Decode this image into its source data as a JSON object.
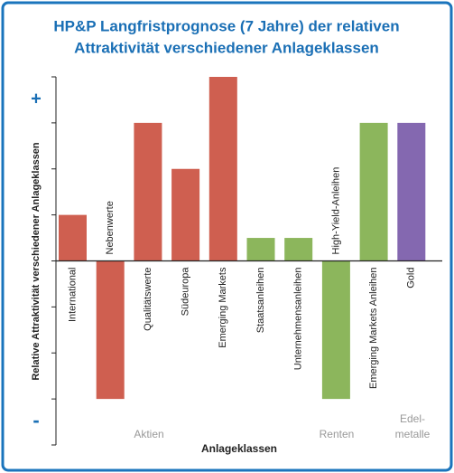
{
  "chart_data": {
    "type": "bar",
    "title": [
      "HP&P Langfristprognose (7 Jahre) der relativen",
      "Attraktivität verschiedener Anlageklassen"
    ],
    "x_label": "Anlageklassen",
    "y_label": "Relative Attraktivität verschiedener Anlageklassen",
    "y_top_label": "+",
    "y_bottom_label": "-",
    "categories": [
      "International",
      "Nebenwerte",
      "Qualitätswerte",
      "Südeuropa",
      "Emerging Markets",
      "Staatsanleihen",
      "Unternehmensanleihen",
      "High-Yield-Anleihen",
      "Emerging Markets Anleihen",
      "Gold"
    ],
    "values": [
      1,
      -3,
      3,
      2,
      4,
      0.5,
      0.5,
      -3,
      3,
      3
    ],
    "colors": [
      "#cf5f50",
      "#cf5f50",
      "#cf5f50",
      "#cf5f50",
      "#cf5f50",
      "#8cb65c",
      "#8cb65c",
      "#8cb65c",
      "#8cb65c",
      "#8468b0"
    ],
    "groups": [
      [
        "Aktien"
      ],
      [
        "Renten"
      ],
      [
        "Edel-",
        "metalle"
      ]
    ],
    "ylim": [
      -4,
      4
    ],
    "yticks": [
      -4,
      -3,
      -2,
      -1,
      0,
      1,
      2,
      3,
      4
    ],
    "grid": false
  }
}
